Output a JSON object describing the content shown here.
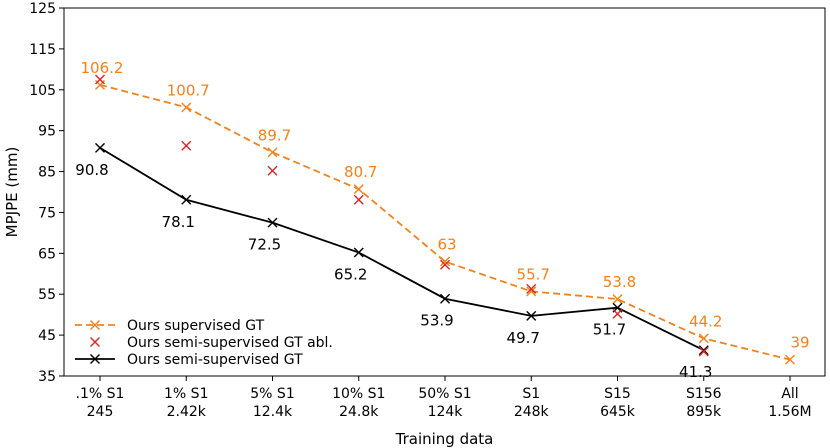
{
  "chart_data": {
    "type": "line",
    "xlabel": "Training data",
    "ylabel": "MPJPE (mm)",
    "ylim": [
      35,
      125
    ],
    "yticks": [
      35,
      45,
      55,
      65,
      75,
      85,
      95,
      105,
      115,
      125
    ],
    "categories": [
      ".1% S1\n245",
      "1% S1\n2.42k",
      "5% S1\n12.4k",
      "10% S1\n24.8k",
      "50% S1\n124k",
      "S1\n248k",
      "S15\n645k",
      "S156\n895k",
      "All\n1.56M"
    ],
    "series": [
      {
        "name": "Ours supervised GT",
        "style": "dashed",
        "marker": "x",
        "color": "#f0821e",
        "values": [
          106.2,
          100.7,
          89.7,
          80.7,
          63,
          55.7,
          53.8,
          44.2,
          39
        ],
        "labels": [
          "106.2",
          "100.7",
          "89.7",
          "80.7",
          "63",
          "55.7",
          "53.8",
          "44.2",
          "39"
        ]
      },
      {
        "name": "Ours semi-supervised GT abl.",
        "style": "none",
        "marker": "x",
        "color": "#d62728",
        "values": [
          107.5,
          91.3,
          85.2,
          78.1,
          62.2,
          56.3,
          50.2,
          41.0,
          null
        ]
      },
      {
        "name": "Ours semi-supervised GT",
        "style": "solid",
        "marker": "x",
        "color": "#000000",
        "values": [
          90.8,
          78.1,
          72.5,
          65.2,
          53.9,
          49.7,
          51.7,
          41.3,
          null
        ],
        "labels": [
          "90.8",
          "78.1",
          "72.5",
          "65.2",
          "53.9",
          "49.7",
          "51.7",
          "41.3",
          null
        ]
      }
    ],
    "legend_position": "bottom-left",
    "grid": false
  }
}
